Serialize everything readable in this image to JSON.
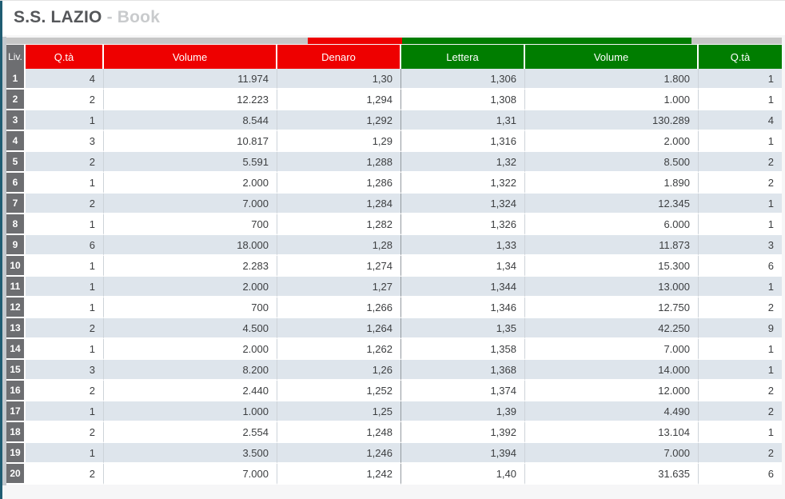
{
  "title": {
    "instrument": "S.S. LAZIO",
    "view": "- Book"
  },
  "pressure_bar": {
    "segments": {
      "left_track": 38.9,
      "bid": 12.1,
      "ask": 37.4,
      "right_track": 11.6
    }
  },
  "table": {
    "headers": {
      "level": "Liv.",
      "bid_qty": "Q.tà",
      "bid_volume": "Volume",
      "bid_price": "Denaro",
      "ask_price": "Lettera",
      "ask_volume": "Volume",
      "ask_qty": "Q.tà"
    },
    "rows": [
      {
        "level": "1",
        "bid_qty": "4",
        "bid_volume": "11.974",
        "bid_price": "1,30",
        "ask_price": "1,306",
        "ask_volume": "1.800",
        "ask_qty": "1"
      },
      {
        "level": "2",
        "bid_qty": "2",
        "bid_volume": "12.223",
        "bid_price": "1,294",
        "ask_price": "1,308",
        "ask_volume": "1.000",
        "ask_qty": "1"
      },
      {
        "level": "3",
        "bid_qty": "1",
        "bid_volume": "8.544",
        "bid_price": "1,292",
        "ask_price": "1,31",
        "ask_volume": "130.289",
        "ask_qty": "4"
      },
      {
        "level": "4",
        "bid_qty": "3",
        "bid_volume": "10.817",
        "bid_price": "1,29",
        "ask_price": "1,316",
        "ask_volume": "2.000",
        "ask_qty": "1"
      },
      {
        "level": "5",
        "bid_qty": "2",
        "bid_volume": "5.591",
        "bid_price": "1,288",
        "ask_price": "1,32",
        "ask_volume": "8.500",
        "ask_qty": "2"
      },
      {
        "level": "6",
        "bid_qty": "1",
        "bid_volume": "2.000",
        "bid_price": "1,286",
        "ask_price": "1,322",
        "ask_volume": "1.890",
        "ask_qty": "2"
      },
      {
        "level": "7",
        "bid_qty": "2",
        "bid_volume": "7.000",
        "bid_price": "1,284",
        "ask_price": "1,324",
        "ask_volume": "12.345",
        "ask_qty": "1"
      },
      {
        "level": "8",
        "bid_qty": "1",
        "bid_volume": "700",
        "bid_price": "1,282",
        "ask_price": "1,326",
        "ask_volume": "6.000",
        "ask_qty": "1"
      },
      {
        "level": "9",
        "bid_qty": "6",
        "bid_volume": "18.000",
        "bid_price": "1,28",
        "ask_price": "1,33",
        "ask_volume": "11.873",
        "ask_qty": "3"
      },
      {
        "level": "10",
        "bid_qty": "1",
        "bid_volume": "2.283",
        "bid_price": "1,274",
        "ask_price": "1,34",
        "ask_volume": "15.300",
        "ask_qty": "6"
      },
      {
        "level": "11",
        "bid_qty": "1",
        "bid_volume": "2.000",
        "bid_price": "1,27",
        "ask_price": "1,344",
        "ask_volume": "13.000",
        "ask_qty": "1"
      },
      {
        "level": "12",
        "bid_qty": "1",
        "bid_volume": "700",
        "bid_price": "1,266",
        "ask_price": "1,346",
        "ask_volume": "12.750",
        "ask_qty": "2"
      },
      {
        "level": "13",
        "bid_qty": "2",
        "bid_volume": "4.500",
        "bid_price": "1,264",
        "ask_price": "1,35",
        "ask_volume": "42.250",
        "ask_qty": "9"
      },
      {
        "level": "14",
        "bid_qty": "1",
        "bid_volume": "2.000",
        "bid_price": "1,262",
        "ask_price": "1,358",
        "ask_volume": "7.000",
        "ask_qty": "1"
      },
      {
        "level": "15",
        "bid_qty": "3",
        "bid_volume": "8.200",
        "bid_price": "1,26",
        "ask_price": "1,368",
        "ask_volume": "14.000",
        "ask_qty": "1"
      },
      {
        "level": "16",
        "bid_qty": "2",
        "bid_volume": "2.440",
        "bid_price": "1,252",
        "ask_price": "1,374",
        "ask_volume": "12.000",
        "ask_qty": "2"
      },
      {
        "level": "17",
        "bid_qty": "1",
        "bid_volume": "1.000",
        "bid_price": "1,25",
        "ask_price": "1,39",
        "ask_volume": "4.490",
        "ask_qty": "2"
      },
      {
        "level": "18",
        "bid_qty": "2",
        "bid_volume": "2.554",
        "bid_price": "1,248",
        "ask_price": "1,392",
        "ask_volume": "13.104",
        "ask_qty": "1"
      },
      {
        "level": "19",
        "bid_qty": "1",
        "bid_volume": "3.500",
        "bid_price": "1,246",
        "ask_price": "1,394",
        "ask_volume": "7.000",
        "ask_qty": "2"
      },
      {
        "level": "20",
        "bid_qty": "2",
        "bid_volume": "7.000",
        "bid_price": "1,242",
        "ask_price": "1,40",
        "ask_volume": "31.635",
        "ask_qty": "6"
      }
    ]
  },
  "colors": {
    "bid_red": "#ee0000",
    "ask_green": "#007d00",
    "level_gray": "#6d6e71",
    "row_alt": "#dee5ec",
    "accent_teal": "#1f5c72",
    "bar_track": "#c6c6c6"
  }
}
